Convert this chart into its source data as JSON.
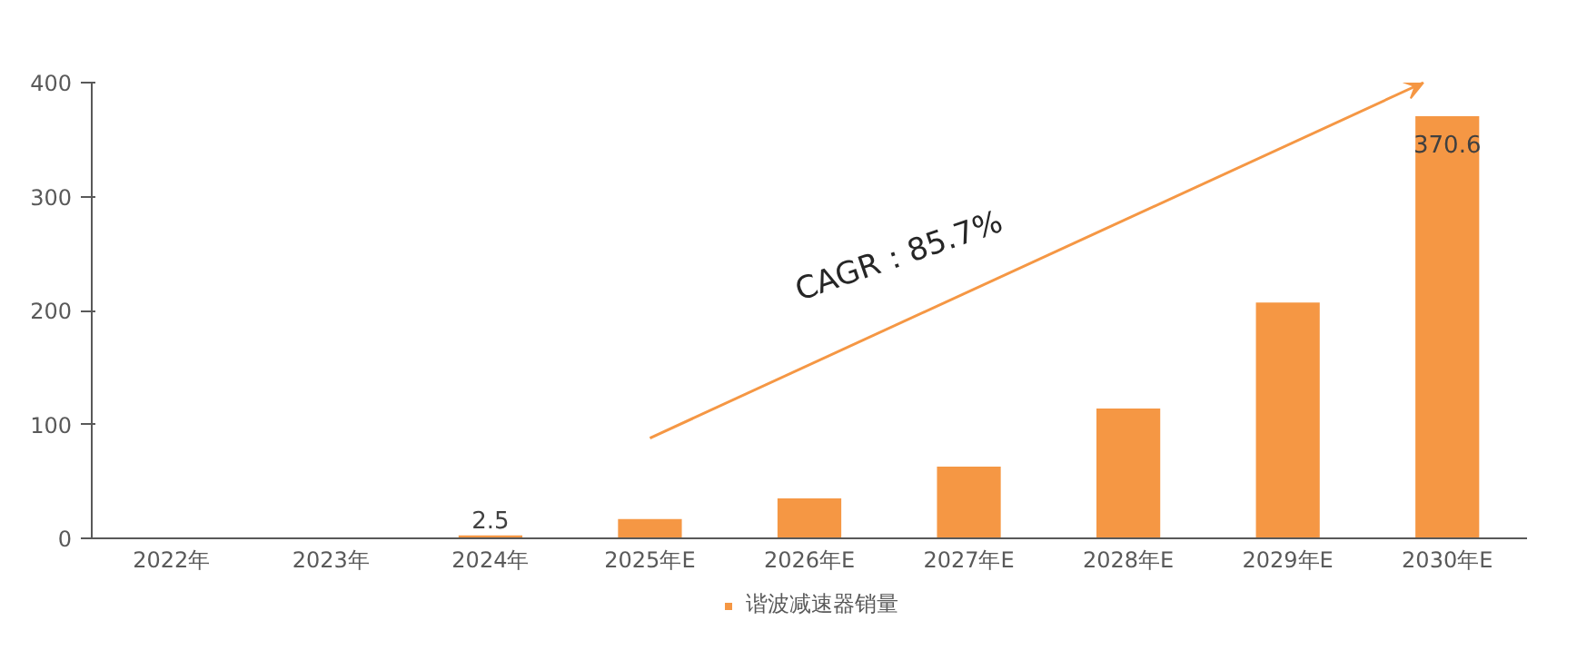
{
  "chart_data": {
    "type": "bar",
    "categories": [
      "2022年",
      "2023年",
      "2024年",
      "2025年E",
      "2026年E",
      "2027年E",
      "2028年E",
      "2029年E",
      "2030年E"
    ],
    "series": [
      {
        "name": "谐波减速器销量",
        "color": "#f59744",
        "values": [
          0,
          null,
          2.5,
          17,
          35,
          63,
          114,
          207,
          370.6
        ],
        "value_labels": [
          null,
          null,
          "2.5",
          null,
          null,
          null,
          null,
          null,
          "370.6"
        ]
      }
    ],
    "ylim": [
      0,
      400
    ],
    "yticks": [
      0,
      100,
      200,
      300,
      400
    ],
    "grid": false,
    "legend": "bottom",
    "annotations": [
      "CAGR：85.7%"
    ]
  }
}
